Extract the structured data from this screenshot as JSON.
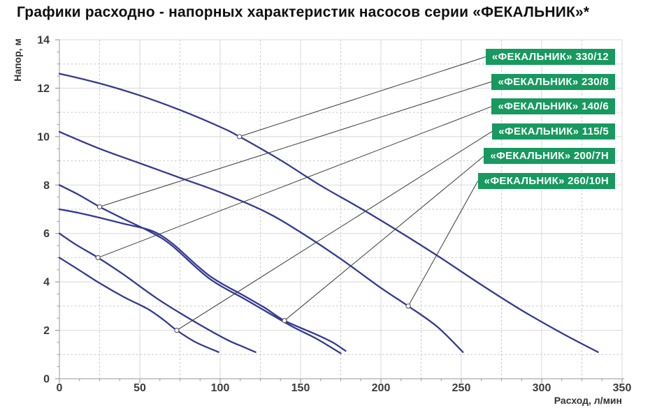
{
  "title": "Графики расходно - напорных характеристик насосов серии «ФЕКАЛЬНИК»*",
  "colors": {
    "curve": "#333a93",
    "legend_bg": "#17995f",
    "legend_text": "#ffffff",
    "grid_major": "#d8d8d8",
    "grid_minor": "#c6c6c6",
    "axis": "#aaaaaa",
    "tick": "#9e9e9e",
    "tick_label": "#3b3b3b",
    "leader": "#3a3a3a",
    "marker_stroke": "#555555",
    "title_color": "#0f0f0f"
  },
  "chart_data": {
    "type": "line",
    "title": "Графики расходно - напорных характеристик насосов серии «ФЕКАЛЬНИК»*",
    "xlabel": "Расход, л/мин",
    "ylabel": "Напор, м",
    "xlim": [
      0,
      350
    ],
    "ylim": [
      0,
      14
    ],
    "x_major_ticks": [
      0,
      50,
      100,
      150,
      200,
      250,
      300,
      350
    ],
    "x_dashed_gridlines": [
      25,
      75,
      125,
      175,
      225,
      275,
      325
    ],
    "x_minor_tick_step": 12.5,
    "y_major_ticks": [
      0,
      2,
      4,
      6,
      8,
      10,
      12,
      14
    ],
    "y_dashed_gridlines": [
      1,
      3,
      5,
      7,
      9,
      11,
      13
    ],
    "y_minor_tick_step": 0.5,
    "grid": "major solid, minor dashed",
    "legend_position": "stacked green boxes at upper right, leader lines to curves",
    "series": [
      {
        "name": "«ФЕКАЛЬНИК» 330/12",
        "slug": "330-12",
        "legend_row": 0,
        "marker": [
          112,
          10.0
        ],
        "points": [
          [
            0,
            12.6
          ],
          [
            25,
            12.2
          ],
          [
            50,
            11.7
          ],
          [
            75,
            11.1
          ],
          [
            100,
            10.4
          ],
          [
            112,
            10.0
          ],
          [
            137,
            9.05
          ],
          [
            162,
            8.0
          ],
          [
            187,
            7.05
          ],
          [
            212,
            6.05
          ],
          [
            237,
            5.0
          ],
          [
            262,
            3.9
          ],
          [
            287,
            2.85
          ],
          [
            312,
            1.9
          ],
          [
            335,
            1.1
          ]
        ]
      },
      {
        "name": "«ФЕКАЛЬНИК» 230/8",
        "slug": "230-8",
        "legend_row": 1,
        "marker": [
          25,
          7.1
        ],
        "points": [
          [
            0,
            8.0
          ],
          [
            12,
            7.6
          ],
          [
            25,
            7.1
          ],
          [
            40,
            6.6
          ],
          [
            57,
            6.05
          ],
          [
            70,
            5.5
          ],
          [
            93,
            4.15
          ],
          [
            115,
            3.3
          ],
          [
            128,
            2.8
          ],
          [
            145,
            2.15
          ],
          [
            160,
            1.65
          ],
          [
            175,
            1.05
          ]
        ]
      },
      {
        "name": "«ФЕКАЛЬНИК» 140/6",
        "slug": "140-6",
        "legend_row": 2,
        "marker": [
          24,
          5.0
        ],
        "points": [
          [
            0,
            6.0
          ],
          [
            10,
            5.55
          ],
          [
            24,
            5.0
          ],
          [
            40,
            4.3
          ],
          [
            61,
            3.3
          ],
          [
            83,
            2.4
          ],
          [
            104,
            1.62
          ],
          [
            115,
            1.3
          ],
          [
            122,
            1.1
          ]
        ]
      },
      {
        "name": "«ФЕКАЛЬНИК» 115/5",
        "slug": "115-5",
        "legend_row": 3,
        "marker": [
          73,
          2.0
        ],
        "points": [
          [
            0,
            5.0
          ],
          [
            12,
            4.5
          ],
          [
            25,
            3.95
          ],
          [
            40,
            3.38
          ],
          [
            55,
            2.88
          ],
          [
            65,
            2.42
          ],
          [
            73,
            2.0
          ],
          [
            85,
            1.5
          ],
          [
            99,
            1.1
          ]
        ]
      },
      {
        "name": "«ФЕКАЛЬНИК» 200/7Н",
        "slug": "200-7n",
        "legend_row": 4,
        "marker": [
          140,
          2.4
        ],
        "points": [
          [
            0,
            7.0
          ],
          [
            12,
            6.85
          ],
          [
            25,
            6.65
          ],
          [
            40,
            6.4
          ],
          [
            57,
            6.12
          ],
          [
            70,
            5.6
          ],
          [
            93,
            4.27
          ],
          [
            115,
            3.42
          ],
          [
            128,
            2.92
          ],
          [
            140,
            2.4
          ],
          [
            160,
            1.82
          ],
          [
            170,
            1.5
          ],
          [
            178,
            1.15
          ]
        ]
      },
      {
        "name": "«ФЕКАЛЬНИК» 260/10Н",
        "slug": "260-10n",
        "legend_row": 5,
        "marker": [
          217,
          3.0
        ],
        "points": [
          [
            0,
            10.2
          ],
          [
            25,
            9.5
          ],
          [
            50,
            8.9
          ],
          [
            75,
            8.3
          ],
          [
            100,
            7.7
          ],
          [
            128,
            6.9
          ],
          [
            150,
            6.05
          ],
          [
            175,
            4.95
          ],
          [
            200,
            3.75
          ],
          [
            217,
            3.0
          ],
          [
            235,
            2.15
          ],
          [
            251,
            1.1
          ]
        ]
      }
    ]
  }
}
